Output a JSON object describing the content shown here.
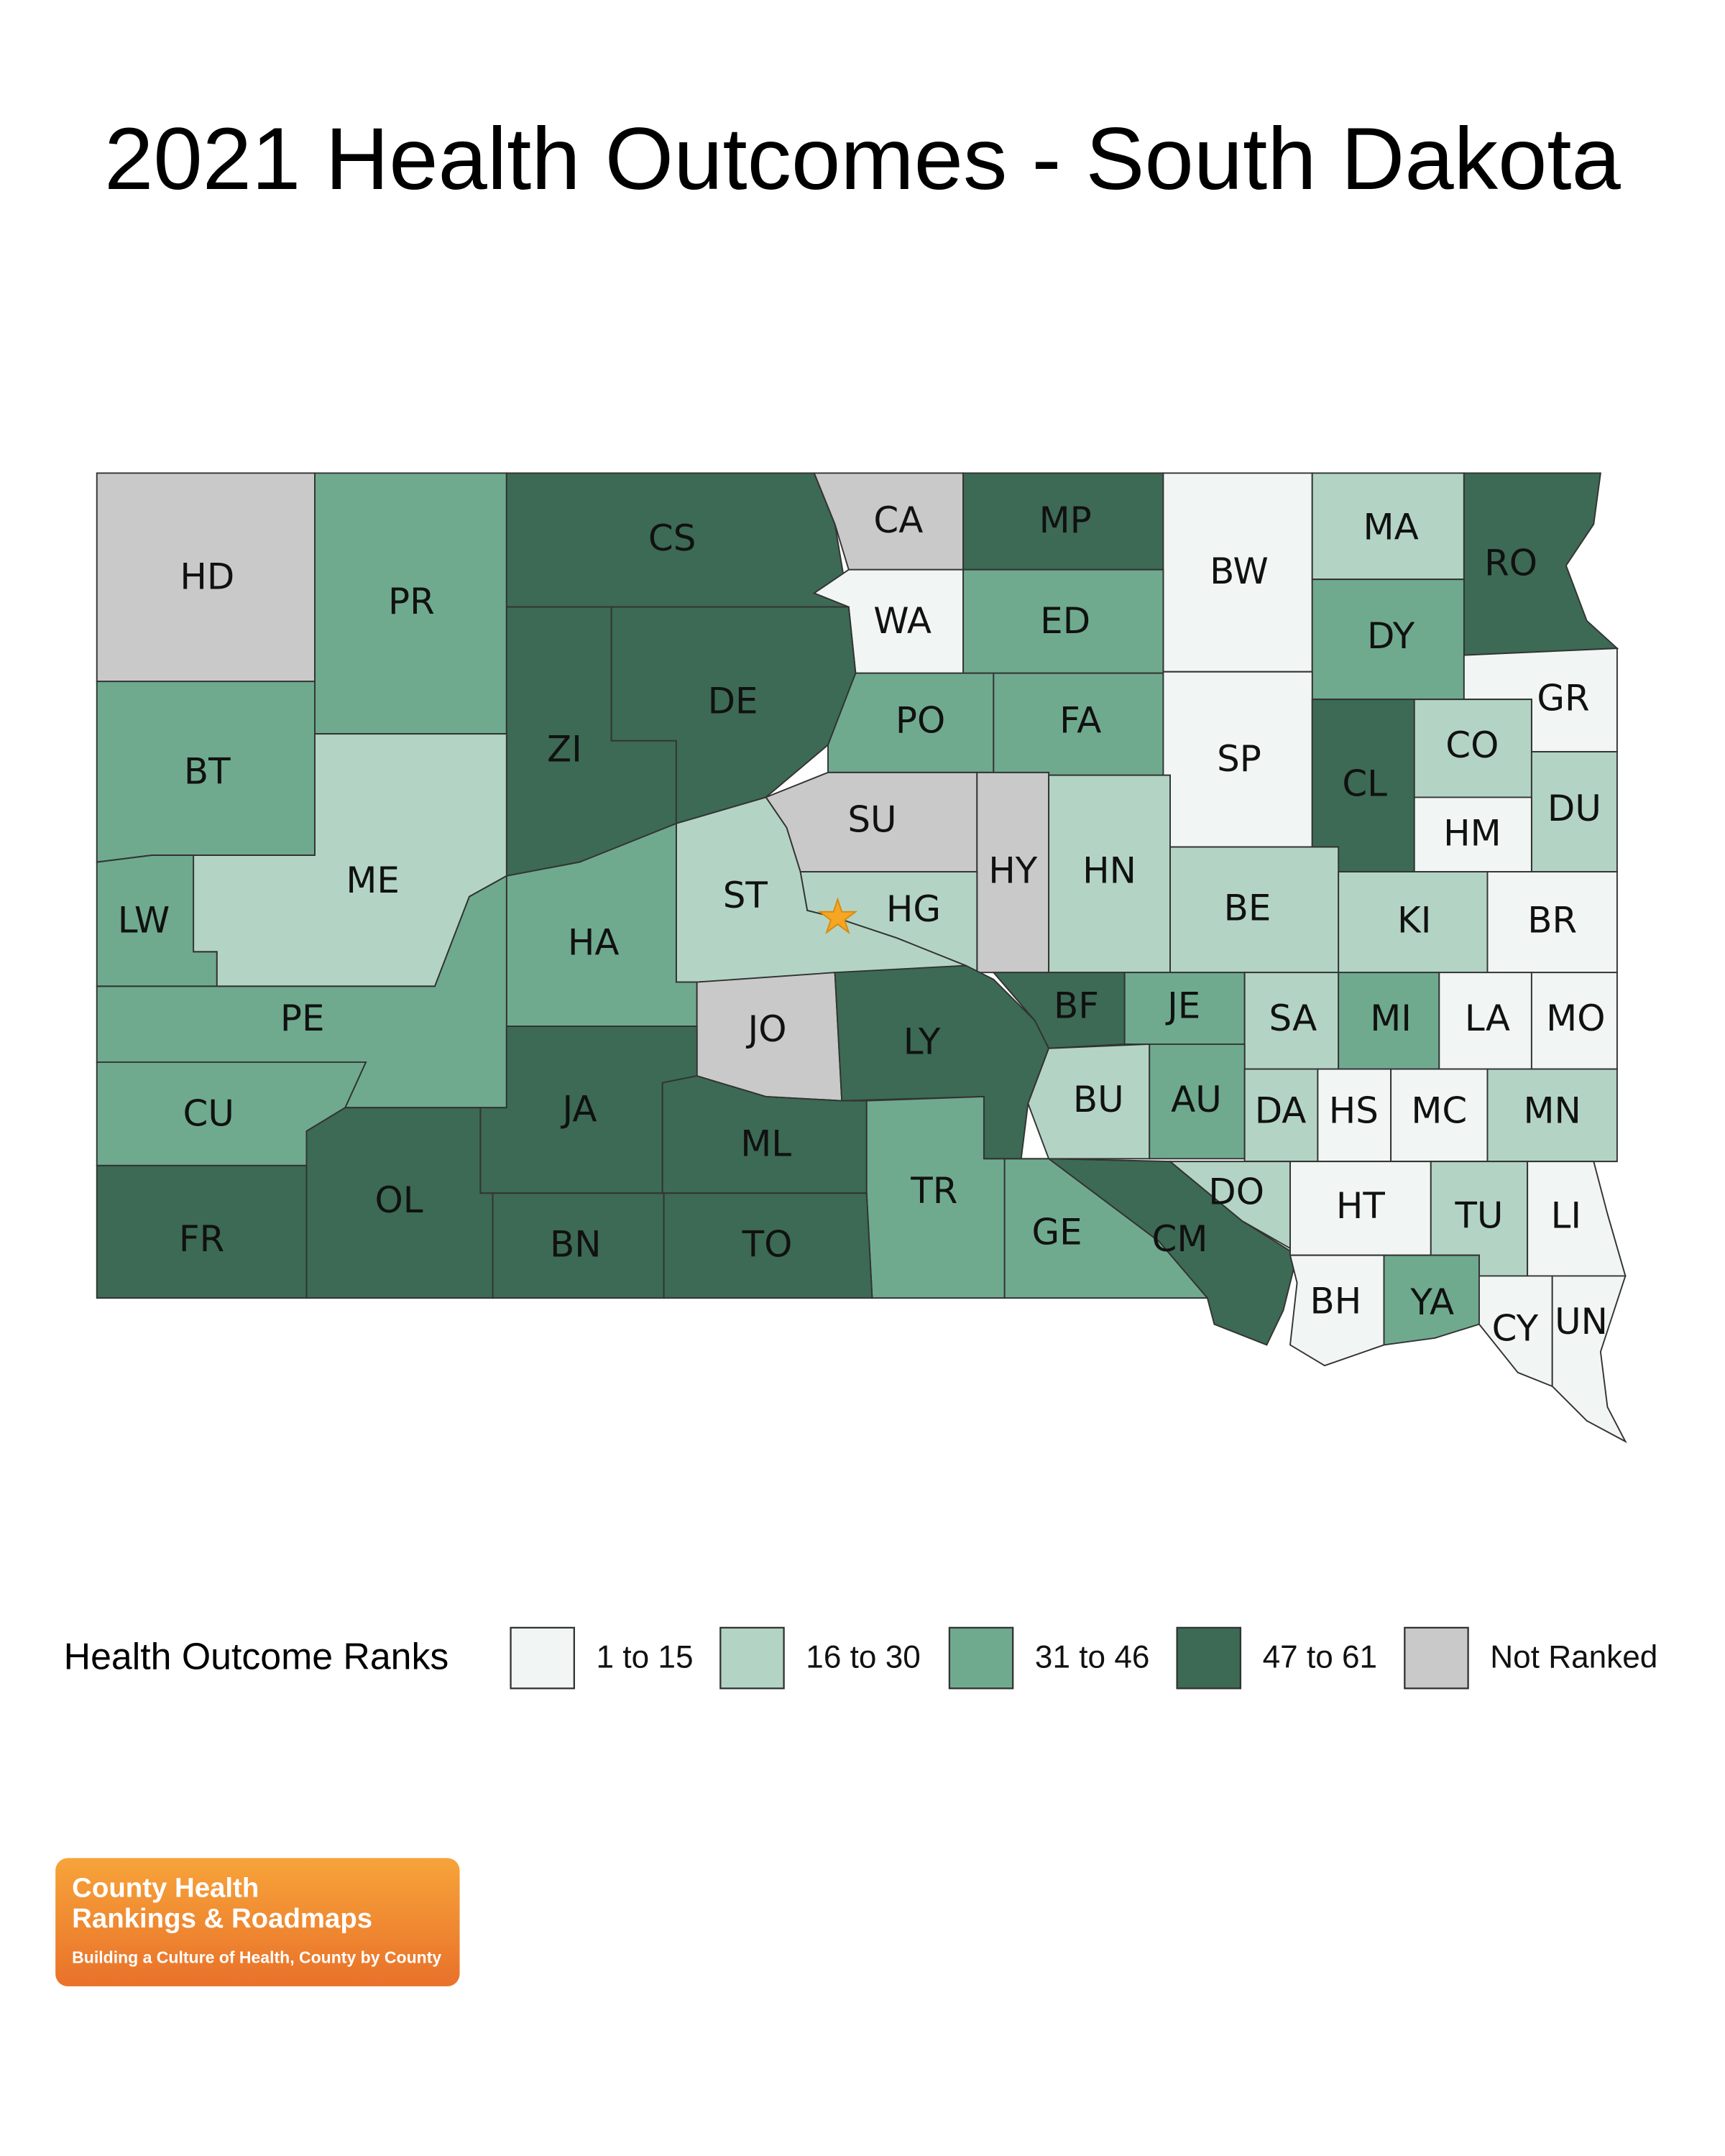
{
  "title": "2021 Health Outcomes - South Dakota",
  "legend": {
    "title": "Health Outcome Ranks",
    "items": [
      {
        "label": "1 to 15",
        "color": "#f1f6f4"
      },
      {
        "label": "16 to 30",
        "color": "#b3d4c4"
      },
      {
        "label": "31 to 46",
        "color": "#6faa8f"
      },
      {
        "label": "47 to 61",
        "color": "#3c6a55"
      },
      {
        "label": "Not Ranked",
        "color": "#c9c9c9"
      }
    ]
  },
  "counties": [
    {
      "label": "HD",
      "rank_group": 4
    },
    {
      "label": "PR",
      "rank_group": 2
    },
    {
      "label": "CS",
      "rank_group": 3
    },
    {
      "label": "CA",
      "rank_group": 4
    },
    {
      "label": "MP",
      "rank_group": 3
    },
    {
      "label": "BW",
      "rank_group": 0
    },
    {
      "label": "MA",
      "rank_group": 1
    },
    {
      "label": "RO",
      "rank_group": 3
    },
    {
      "label": "WA",
      "rank_group": 0
    },
    {
      "label": "ED",
      "rank_group": 2
    },
    {
      "label": "DY",
      "rank_group": 2
    },
    {
      "label": "GR",
      "rank_group": 0
    },
    {
      "label": "ZI",
      "rank_group": 3
    },
    {
      "label": "DE",
      "rank_group": 3
    },
    {
      "label": "PO",
      "rank_group": 2
    },
    {
      "label": "FA",
      "rank_group": 2
    },
    {
      "label": "SP",
      "rank_group": 0
    },
    {
      "label": "CL",
      "rank_group": 3
    },
    {
      "label": "CO",
      "rank_group": 1
    },
    {
      "label": "DU",
      "rank_group": 1
    },
    {
      "label": "HM",
      "rank_group": 0
    },
    {
      "label": "BT",
      "rank_group": 2
    },
    {
      "label": "ME",
      "rank_group": 1
    },
    {
      "label": "LW",
      "rank_group": 2
    },
    {
      "label": "SU",
      "rank_group": 4
    },
    {
      "label": "HY",
      "rank_group": 4
    },
    {
      "label": "HN",
      "rank_group": 1
    },
    {
      "label": "BE",
      "rank_group": 1
    },
    {
      "label": "KI",
      "rank_group": 1
    },
    {
      "label": "BR",
      "rank_group": 0
    },
    {
      "label": "ST",
      "rank_group": 1
    },
    {
      "label": "HG",
      "rank_group": 1
    },
    {
      "label": "HA",
      "rank_group": 2
    },
    {
      "label": "PE",
      "rank_group": 2
    },
    {
      "label": "JO",
      "rank_group": 4
    },
    {
      "label": "LY",
      "rank_group": 3
    },
    {
      "label": "BF",
      "rank_group": 3
    },
    {
      "label": "JE",
      "rank_group": 2
    },
    {
      "label": "SA",
      "rank_group": 1
    },
    {
      "label": "MI",
      "rank_group": 2
    },
    {
      "label": "LA",
      "rank_group": 0
    },
    {
      "label": "MO",
      "rank_group": 0
    },
    {
      "label": "CU",
      "rank_group": 2
    },
    {
      "label": "JA",
      "rank_group": 3
    },
    {
      "label": "ML",
      "rank_group": 3
    },
    {
      "label": "TR",
      "rank_group": 2
    },
    {
      "label": "BU",
      "rank_group": 1
    },
    {
      "label": "AU",
      "rank_group": 2
    },
    {
      "label": "DA",
      "rank_group": 1
    },
    {
      "label": "HS",
      "rank_group": 0
    },
    {
      "label": "MC",
      "rank_group": 0
    },
    {
      "label": "MN",
      "rank_group": 1
    },
    {
      "label": "FR",
      "rank_group": 3
    },
    {
      "label": "OL",
      "rank_group": 3
    },
    {
      "label": "BN",
      "rank_group": 3
    },
    {
      "label": "TO",
      "rank_group": 3
    },
    {
      "label": "GE",
      "rank_group": 2
    },
    {
      "label": "CM",
      "rank_group": 3
    },
    {
      "label": "DO",
      "rank_group": 1
    },
    {
      "label": "HT",
      "rank_group": 0
    },
    {
      "label": "TU",
      "rank_group": 1
    },
    {
      "label": "LI",
      "rank_group": 0
    },
    {
      "label": "BH",
      "rank_group": 0
    },
    {
      "label": "YA",
      "rank_group": 2
    },
    {
      "label": "CY",
      "rank_group": 0
    },
    {
      "label": "UN",
      "rank_group": 0
    }
  ],
  "logo": {
    "line1": "County Health",
    "line2": "Rankings & Roadmaps",
    "tagline": "Building a Culture of Health, County by County"
  }
}
